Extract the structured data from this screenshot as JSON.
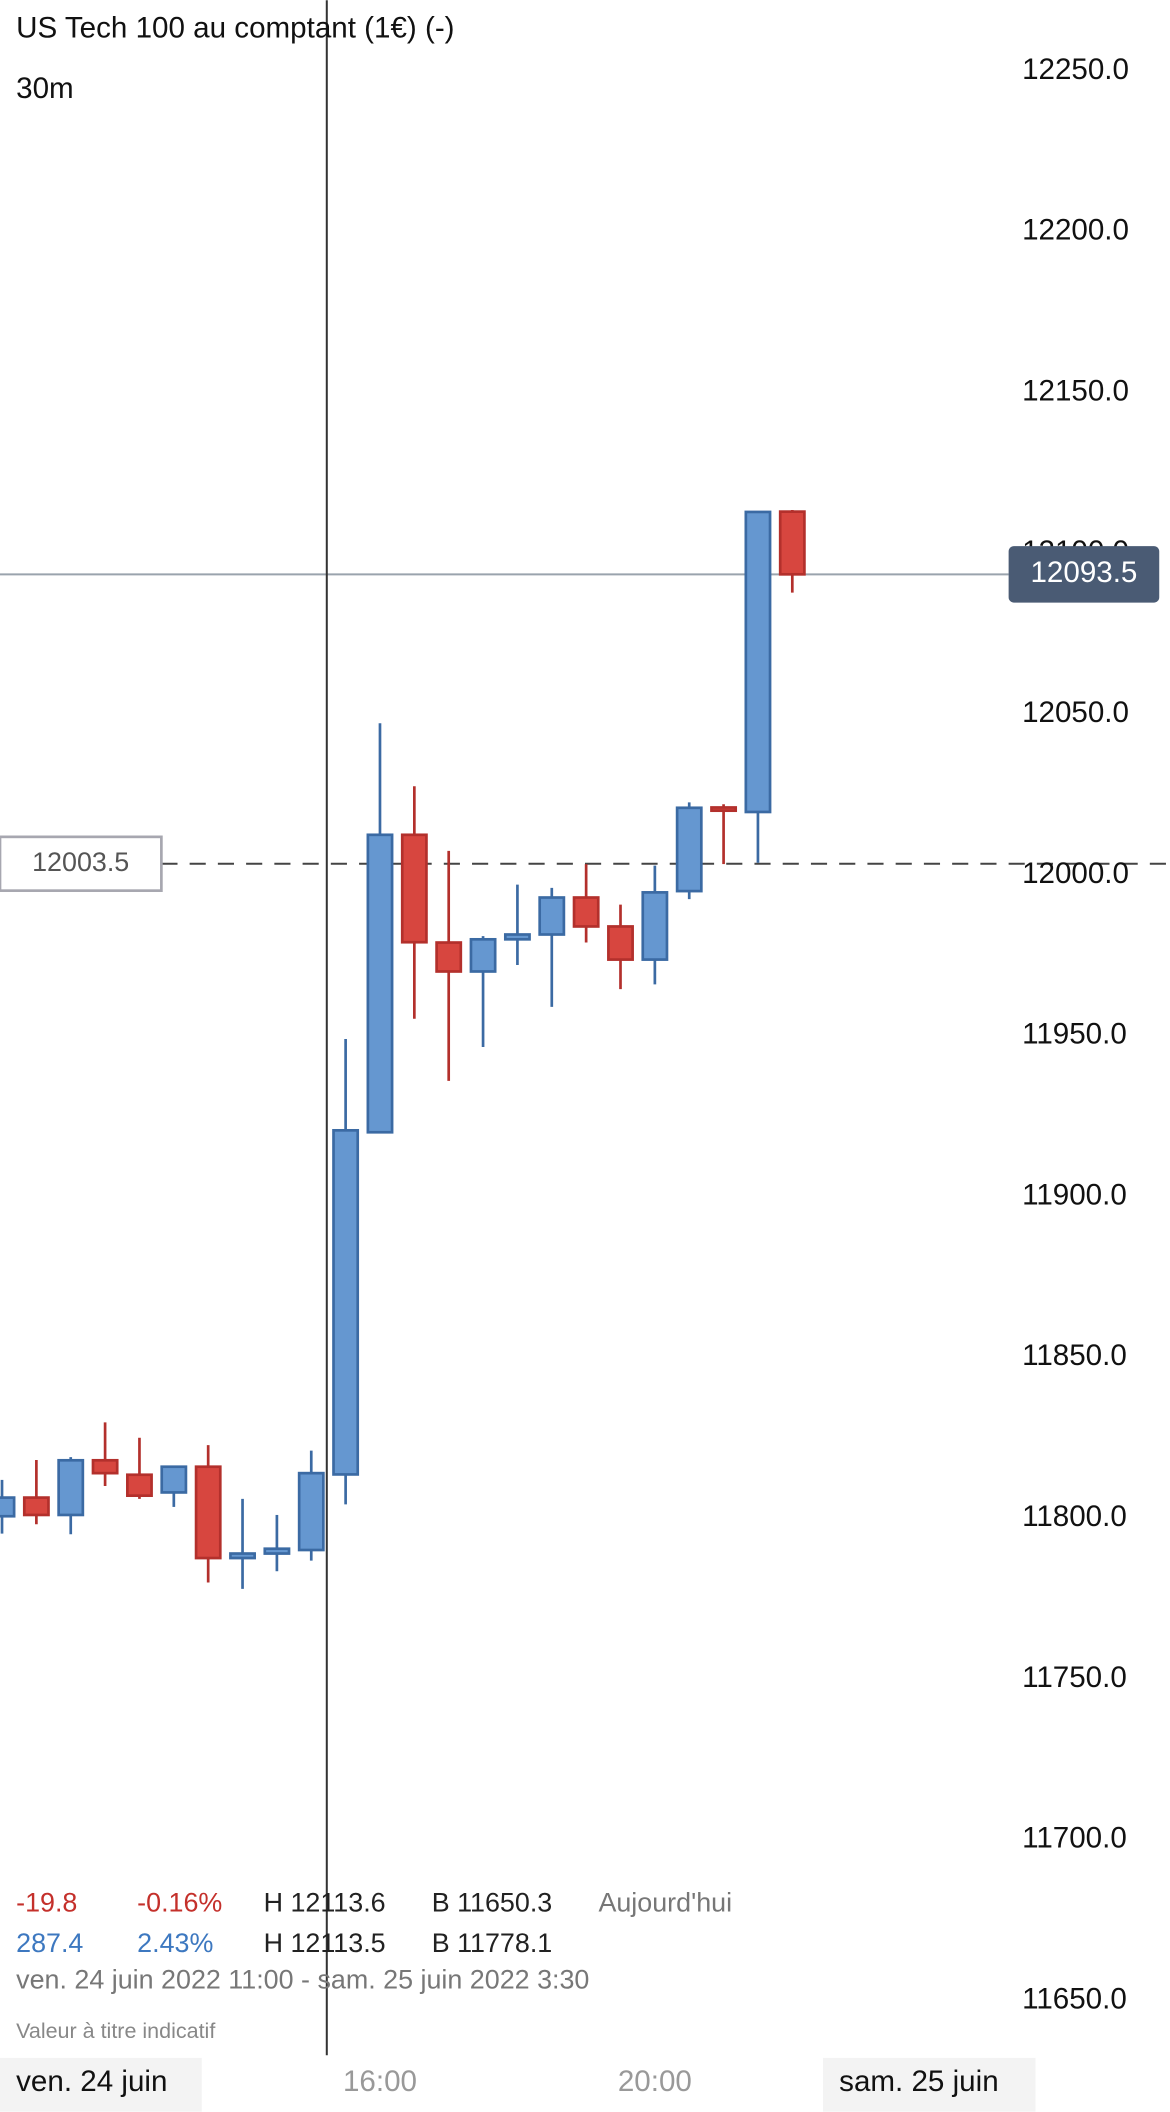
{
  "chart_data": {
    "type": "candlestick",
    "title": "US Tech 100 au comptant (1€) (-)",
    "interval": "30m",
    "categories": [
      null,
      null,
      null,
      null,
      null,
      null,
      null,
      null,
      null,
      null,
      null,
      "16:00",
      null,
      null,
      null,
      null,
      null,
      null,
      null,
      "20:00",
      null,
      null,
      null,
      null
    ],
    "date_labels": [
      "ven. 24 juin",
      "sam. 25 juin"
    ],
    "open": [
      11800.6,
      11806.4,
      11801.0,
      11818.0,
      11813.5,
      11808.0,
      11816.0,
      11787.6,
      11789.0,
      11790.1,
      11813.6,
      11920.0,
      12012.5,
      11979.0,
      11970.0,
      11980.0,
      11981.5,
      11993.0,
      11984.0,
      11973.7,
      11995.0,
      12021.0,
      12019.6,
      12113.0
    ],
    "high": [
      11811.9,
      11818.1,
      11819.0,
      11829.8,
      11825.0,
      11816.0,
      11822.7,
      11806.0,
      11801.0,
      11821.0,
      11949.0,
      12047.2,
      12027.6,
      12007.5,
      11981.0,
      11997.0,
      11996.0,
      12003.4,
      11990.8,
      12002.9,
      12022.6,
      12022.0,
      12113.0,
      12113.5
    ],
    "low": [
      11795.2,
      11798.1,
      11795.0,
      11810.0,
      11806.0,
      11803.5,
      11780.0,
      11778.0,
      11783.5,
      11786.8,
      11804.3,
      11920.0,
      11955.3,
      11936.0,
      11946.5,
      11972.0,
      11959.0,
      11979.0,
      11964.5,
      11966.0,
      11992.5,
      12003.4,
      12003.8,
      12087.8
    ],
    "close": [
      11806.4,
      11801.0,
      11818.0,
      11814.0,
      11807.0,
      11816.0,
      11787.6,
      11789.0,
      11790.5,
      11814.0,
      11920.6,
      12012.5,
      11979.1,
      11970.0,
      11980.0,
      11981.5,
      11993.0,
      11984.0,
      11973.7,
      11994.6,
      12020.9,
      12020.0,
      12112.9,
      12093.5
    ],
    "up_color": "#6597d0",
    "down_color": "#d7463f",
    "ylim": [
      11633,
      12272
    ],
    "yticks": [
      {
        "value": 11650,
        "label": "11650.0"
      },
      {
        "value": 11700,
        "label": "11700.0"
      },
      {
        "value": 11750,
        "label": "11750.0"
      },
      {
        "value": 11800,
        "label": "11800.0"
      },
      {
        "value": 11850,
        "label": "11850.0"
      },
      {
        "value": 11900,
        "label": "11900.0"
      },
      {
        "value": 11950,
        "label": "11950.0"
      },
      {
        "value": 12000,
        "label": "12000.0"
      },
      {
        "value": 12050,
        "label": "12050.0"
      },
      {
        "value": 12100,
        "label": "12100.0"
      },
      {
        "value": 12150,
        "label": "12150.0"
      },
      {
        "value": 12200,
        "label": "12200.0"
      },
      {
        "value": 12250,
        "label": "12250.0"
      }
    ],
    "last_price": {
      "value": 12093.5,
      "label": "12093.5"
    },
    "reference_price": {
      "value": 12003.5,
      "label": "12003.5"
    },
    "info": {
      "row1": [
        "-19.8",
        "-0.16%",
        "H 12113.6",
        "B 11650.3",
        "Aujourd'hui"
      ],
      "row2": [
        "287.4",
        "2.43%",
        "H 12113.5",
        "B 11778.1"
      ],
      "period": "ven. 24 juin 2022 11:00 - sam. 25 juin 2022 3:30",
      "disclaimer": "Valeur à titre indicatif"
    }
  }
}
